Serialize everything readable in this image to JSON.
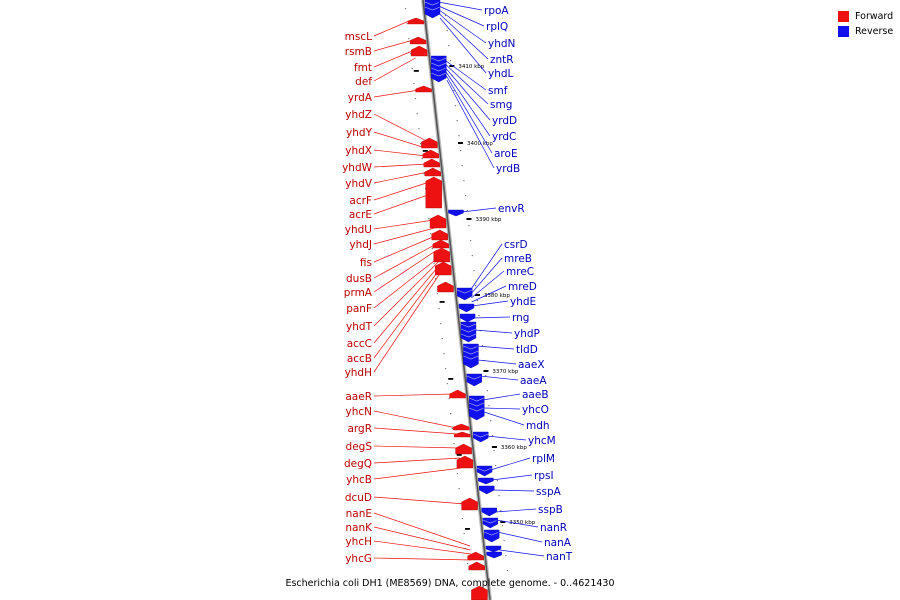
{
  "colors": {
    "forward": "#ee1111",
    "reverse": "#1111ee",
    "backbone": "#888888"
  },
  "legend": [
    {
      "label": "Forward",
      "color": "#ee1111"
    },
    {
      "label": "Reverse",
      "color": "#1111ee"
    }
  ],
  "caption": "Escherichia coli DH1 (ME8569) DNA, complete genome. - 0..4621430",
  "ticks": [
    "3410 kbp",
    "3400 kbp",
    "3390 kbp",
    "3380 kbp",
    "3370 kbp",
    "3360 kbp",
    "3350 kbp"
  ],
  "forward_genes": [
    "mscL",
    "rsmB",
    "fmt",
    "def",
    "yrdA",
    "yhdZ",
    "yhdY",
    "yhdX",
    "yhdW",
    "yhdV",
    "acrF",
    "acrE",
    "yhdU",
    "yhdJ",
    "fis",
    "dusB",
    "prmA",
    "panF",
    "yhdT",
    "accC",
    "accB",
    "yhdH",
    "aaeR",
    "yhcN",
    "argR",
    "degS",
    "degQ",
    "yhcB",
    "dcuD",
    "nanE",
    "nanK",
    "yhcH",
    "yhcG"
  ],
  "reverse_genes": [
    "rpoA",
    "rplQ",
    "yhdN",
    "zntR",
    "yhdL",
    "smf",
    "smg",
    "yrdD",
    "yrdC",
    "aroE",
    "yrdB",
    "envR",
    "csrD",
    "mreB",
    "mreC",
    "mreD",
    "yhdE",
    "rng",
    "yhdP",
    "tldD",
    "aaeX",
    "aaeA",
    "aaeB",
    "yhcO",
    "mdh",
    "yhcM",
    "rplM",
    "rpsI",
    "sspA",
    "sspB",
    "nanR",
    "nanA",
    "nanT"
  ]
}
